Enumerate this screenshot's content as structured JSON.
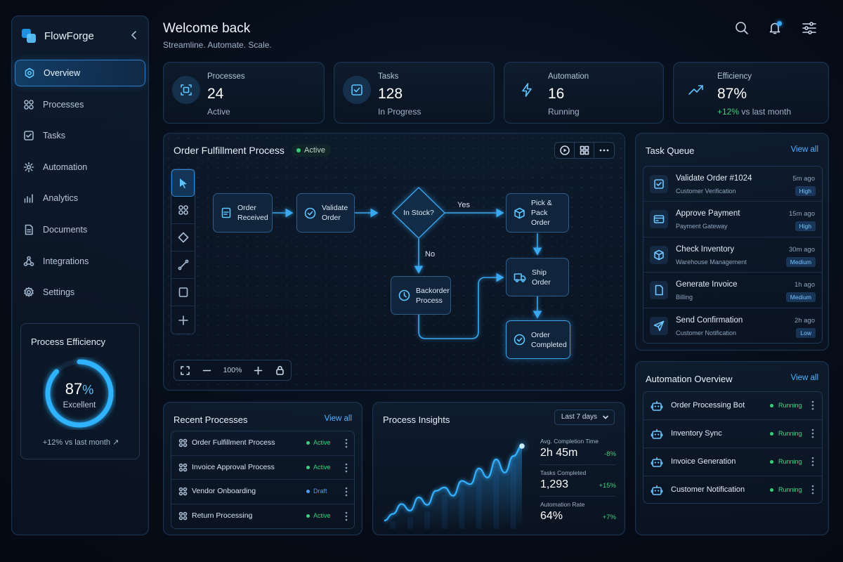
{
  "app": {
    "name": "FlowForge",
    "accent": "#37a9ff"
  },
  "header": {
    "greeting": "Welcome back",
    "tagline": "Streamline. Automate. Scale."
  },
  "sidebar": {
    "items": [
      {
        "label": "Overview",
        "icon": "overview-icon",
        "active": true
      },
      {
        "label": "Processes",
        "icon": "processes-icon"
      },
      {
        "label": "Tasks",
        "icon": "tasks-icon"
      },
      {
        "label": "Automation",
        "icon": "automation-icon"
      },
      {
        "label": "Analytics",
        "icon": "analytics-icon"
      },
      {
        "label": "Documents",
        "icon": "documents-icon"
      },
      {
        "label": "Integrations",
        "icon": "integrations-icon"
      },
      {
        "label": "Settings",
        "icon": "settings-icon"
      }
    ],
    "efficiency": {
      "title": "Process Efficiency",
      "value": "87",
      "unit": "%",
      "fraction": 0.87,
      "label": "Excellent",
      "footer": "+12% vs last month"
    }
  },
  "stats": [
    {
      "label": "Processes",
      "value": "24",
      "sub": "Active",
      "icon": "processes-icon"
    },
    {
      "label": "Tasks",
      "value": "128",
      "sub": "In Progress",
      "icon": "task-check-icon"
    },
    {
      "label": "Automation",
      "value": "16",
      "sub": "Running",
      "icon": "lightning-icon"
    },
    {
      "label": "Efficiency",
      "value": "87%",
      "sub_delta": "+12%",
      "sub": "vs last month",
      "icon": "trend-up-icon"
    }
  ],
  "flow": {
    "title": "Order Fulfillment Process",
    "status": "Active",
    "zoom": "100%",
    "nodes": [
      {
        "id": "order-received",
        "label": "Order\nReceived",
        "icon": "document-icon"
      },
      {
        "id": "validate-order",
        "label": "Validate\nOrder",
        "icon": "check-circle-icon"
      },
      {
        "id": "in-stock",
        "label": "In Stock?",
        "icon": "decision-icon"
      },
      {
        "id": "pick-pack",
        "label": "Pick & Pack\nOrder",
        "icon": "box-icon"
      },
      {
        "id": "ship-order",
        "label": "Ship\nOrder",
        "icon": "truck-icon"
      },
      {
        "id": "backorder",
        "label": "Backorder\nProcess",
        "icon": "clock-icon"
      },
      {
        "id": "order-completed",
        "label": "Order\nCompleted",
        "icon": "check-circle-icon"
      }
    ],
    "edge_labels": {
      "yes": "Yes",
      "no": "No"
    }
  },
  "queue": {
    "title": "Task Queue",
    "link": "View all",
    "items": [
      {
        "title": "Validate Order #1024",
        "sub": "Customer Verification",
        "time": "5m ago",
        "priority": "High",
        "icon": "checkbox-icon"
      },
      {
        "title": "Approve Payment",
        "sub": "Payment Gateway",
        "time": "15m ago",
        "priority": "High",
        "icon": "card-icon"
      },
      {
        "title": "Check Inventory",
        "sub": "Warehouse Management",
        "time": "30m ago",
        "priority": "Medium",
        "icon": "box-icon"
      },
      {
        "title": "Generate Invoice",
        "sub": "Billing",
        "time": "1h ago",
        "priority": "Medium",
        "icon": "document-icon"
      },
      {
        "title": "Send Confirmation",
        "sub": "Customer Notification",
        "time": "2h ago",
        "priority": "Low",
        "icon": "send-icon"
      }
    ]
  },
  "automation": {
    "title": "Automation Overview",
    "link": "View all",
    "items": [
      {
        "name": "Order Processing Bot",
        "status": "Running"
      },
      {
        "name": "Inventory Sync",
        "status": "Running"
      },
      {
        "name": "Invoice Generation",
        "status": "Running"
      },
      {
        "name": "Customer Notification",
        "status": "Running"
      }
    ]
  },
  "recent": {
    "title": "Recent Processes",
    "link": "View all",
    "items": [
      {
        "name": "Order Fulfillment Process",
        "status": "Active",
        "color": "#3fd07a"
      },
      {
        "name": "Invoice Approval Process",
        "status": "Active",
        "color": "#3fd07a"
      },
      {
        "name": "Vendor Onboarding",
        "status": "Draft",
        "color": "#4a9cff"
      },
      {
        "name": "Return Processing",
        "status": "Active",
        "color": "#3fd07a"
      }
    ]
  },
  "insights": {
    "title": "Process Insights",
    "range": "Last 7 days",
    "trend": [
      10,
      18,
      30,
      22,
      38,
      29,
      46,
      50,
      40,
      58,
      54,
      73,
      62,
      84,
      68,
      88,
      100
    ],
    "metrics": [
      {
        "label": "Avg. Completion Time",
        "value": "2h 45m",
        "delta": "-8%"
      },
      {
        "label": "Tasks Completed",
        "value": "1,293",
        "delta": "+15%"
      },
      {
        "label": "Automation Rate",
        "value": "64%",
        "delta": "+7%"
      }
    ]
  }
}
